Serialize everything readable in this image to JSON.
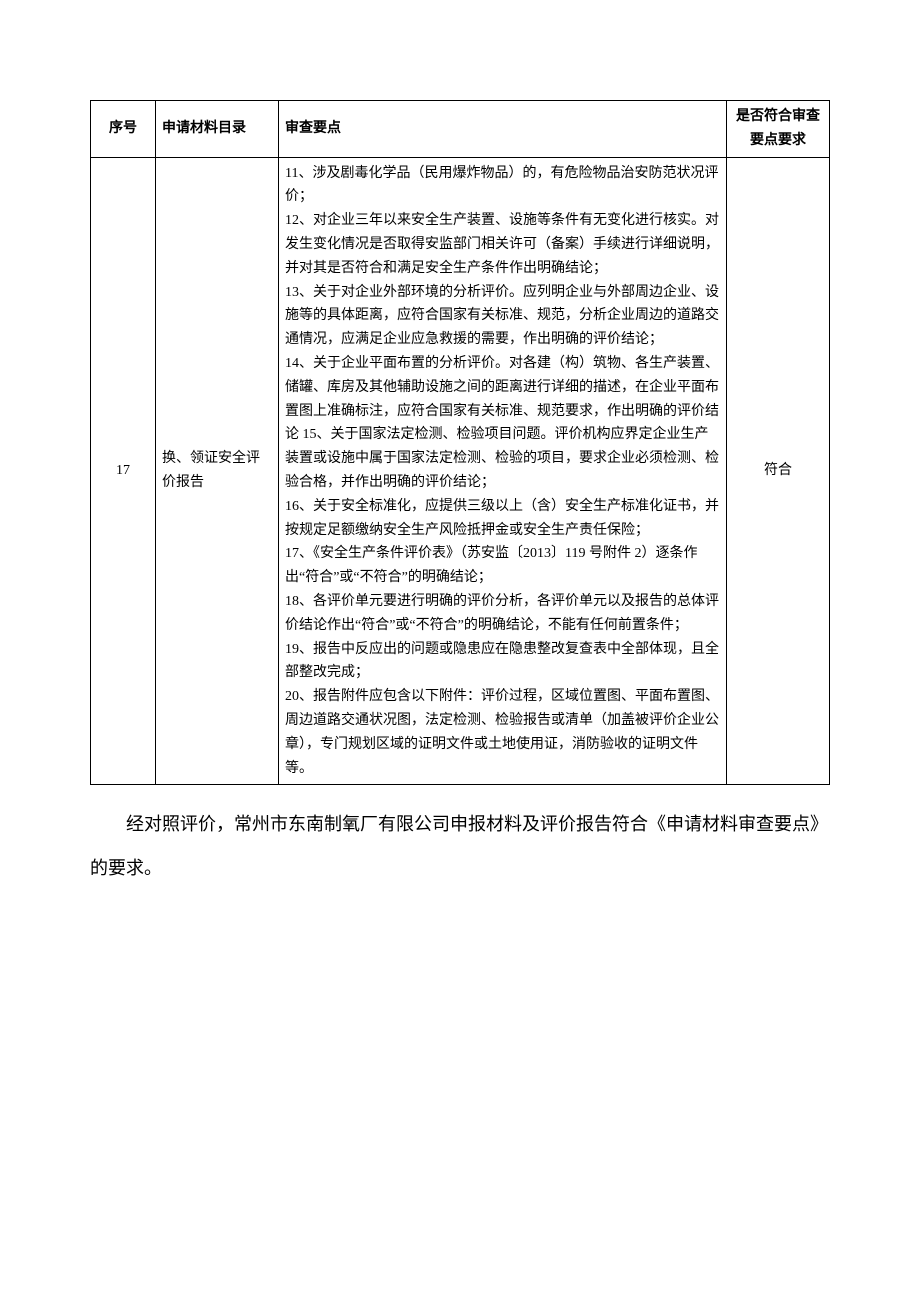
{
  "table": {
    "headers": {
      "seq": "序号",
      "category": "申请材料目录",
      "points": "审查要点",
      "comply": "是否符合审查要点要求"
    },
    "row": {
      "seq": "17",
      "category": "换、领证安全评价报告",
      "points": "11、涉及剧毒化学品（民用爆炸物品）的，有危险物品治安防范状况评价；\n12、对企业三年以来安全生产装置、设施等条件有无变化进行核实。对发生变化情况是否取得安监部门相关许可（备案）手续进行详细说明，并对其是否符合和满足安全生产条件作出明确结论；\n13、关于对企业外部环境的分析评价。应列明企业与外部周边企业、设施等的具体距离，应符合国家有关标准、规范，分析企业周边的道路交通情况，应满足企业应急救援的需要，作出明确的评价结论；\n14、关于企业平面布置的分析评价。对各建（构）筑物、各生产装置、储罐、库房及其他辅助设施之间的距离进行详细的描述，在企业平面布置图上准确标注，应符合国家有关标准、规范要求，作出明确的评价结论 15、关于国家法定检测、检验项目问题。评价机构应界定企业生产装置或设施中属于国家法定检测、检验的项目，要求企业必须检测、检验合格，并作出明确的评价结论；\n16、关于安全标准化，应提供三级以上（含）安全生产标准化证书，并按规定足额缴纳安全生产风险抵押金或安全生产责任保险；\n17、《安全生产条件评价表》（苏安监〔2013〕119 号附件 2）逐条作出“符合”或“不符合”的明确结论；\n18、各评价单元要进行明确的评价分析，各评价单元以及报告的总体评价结论作出“符合”或“不符合”的明确结论，不能有任何前置条件；\n19、报告中反应出的问题或隐患应在隐患整改复查表中全部体现，且全部整改完成；\n20、报告附件应包含以下附件：评价过程，区域位置图、平面布置图、周边道路交通状况图，法定检测、检验报告或清单（加盖被评价企业公章），专门规划区域的证明文件或土地使用证，消防验收的证明文件等。",
      "comply": "符合"
    }
  },
  "conclusion": "经对照评价，常州市东南制氧厂有限公司申报材料及评价报告符合《申请材料审查要点》的要求。"
}
